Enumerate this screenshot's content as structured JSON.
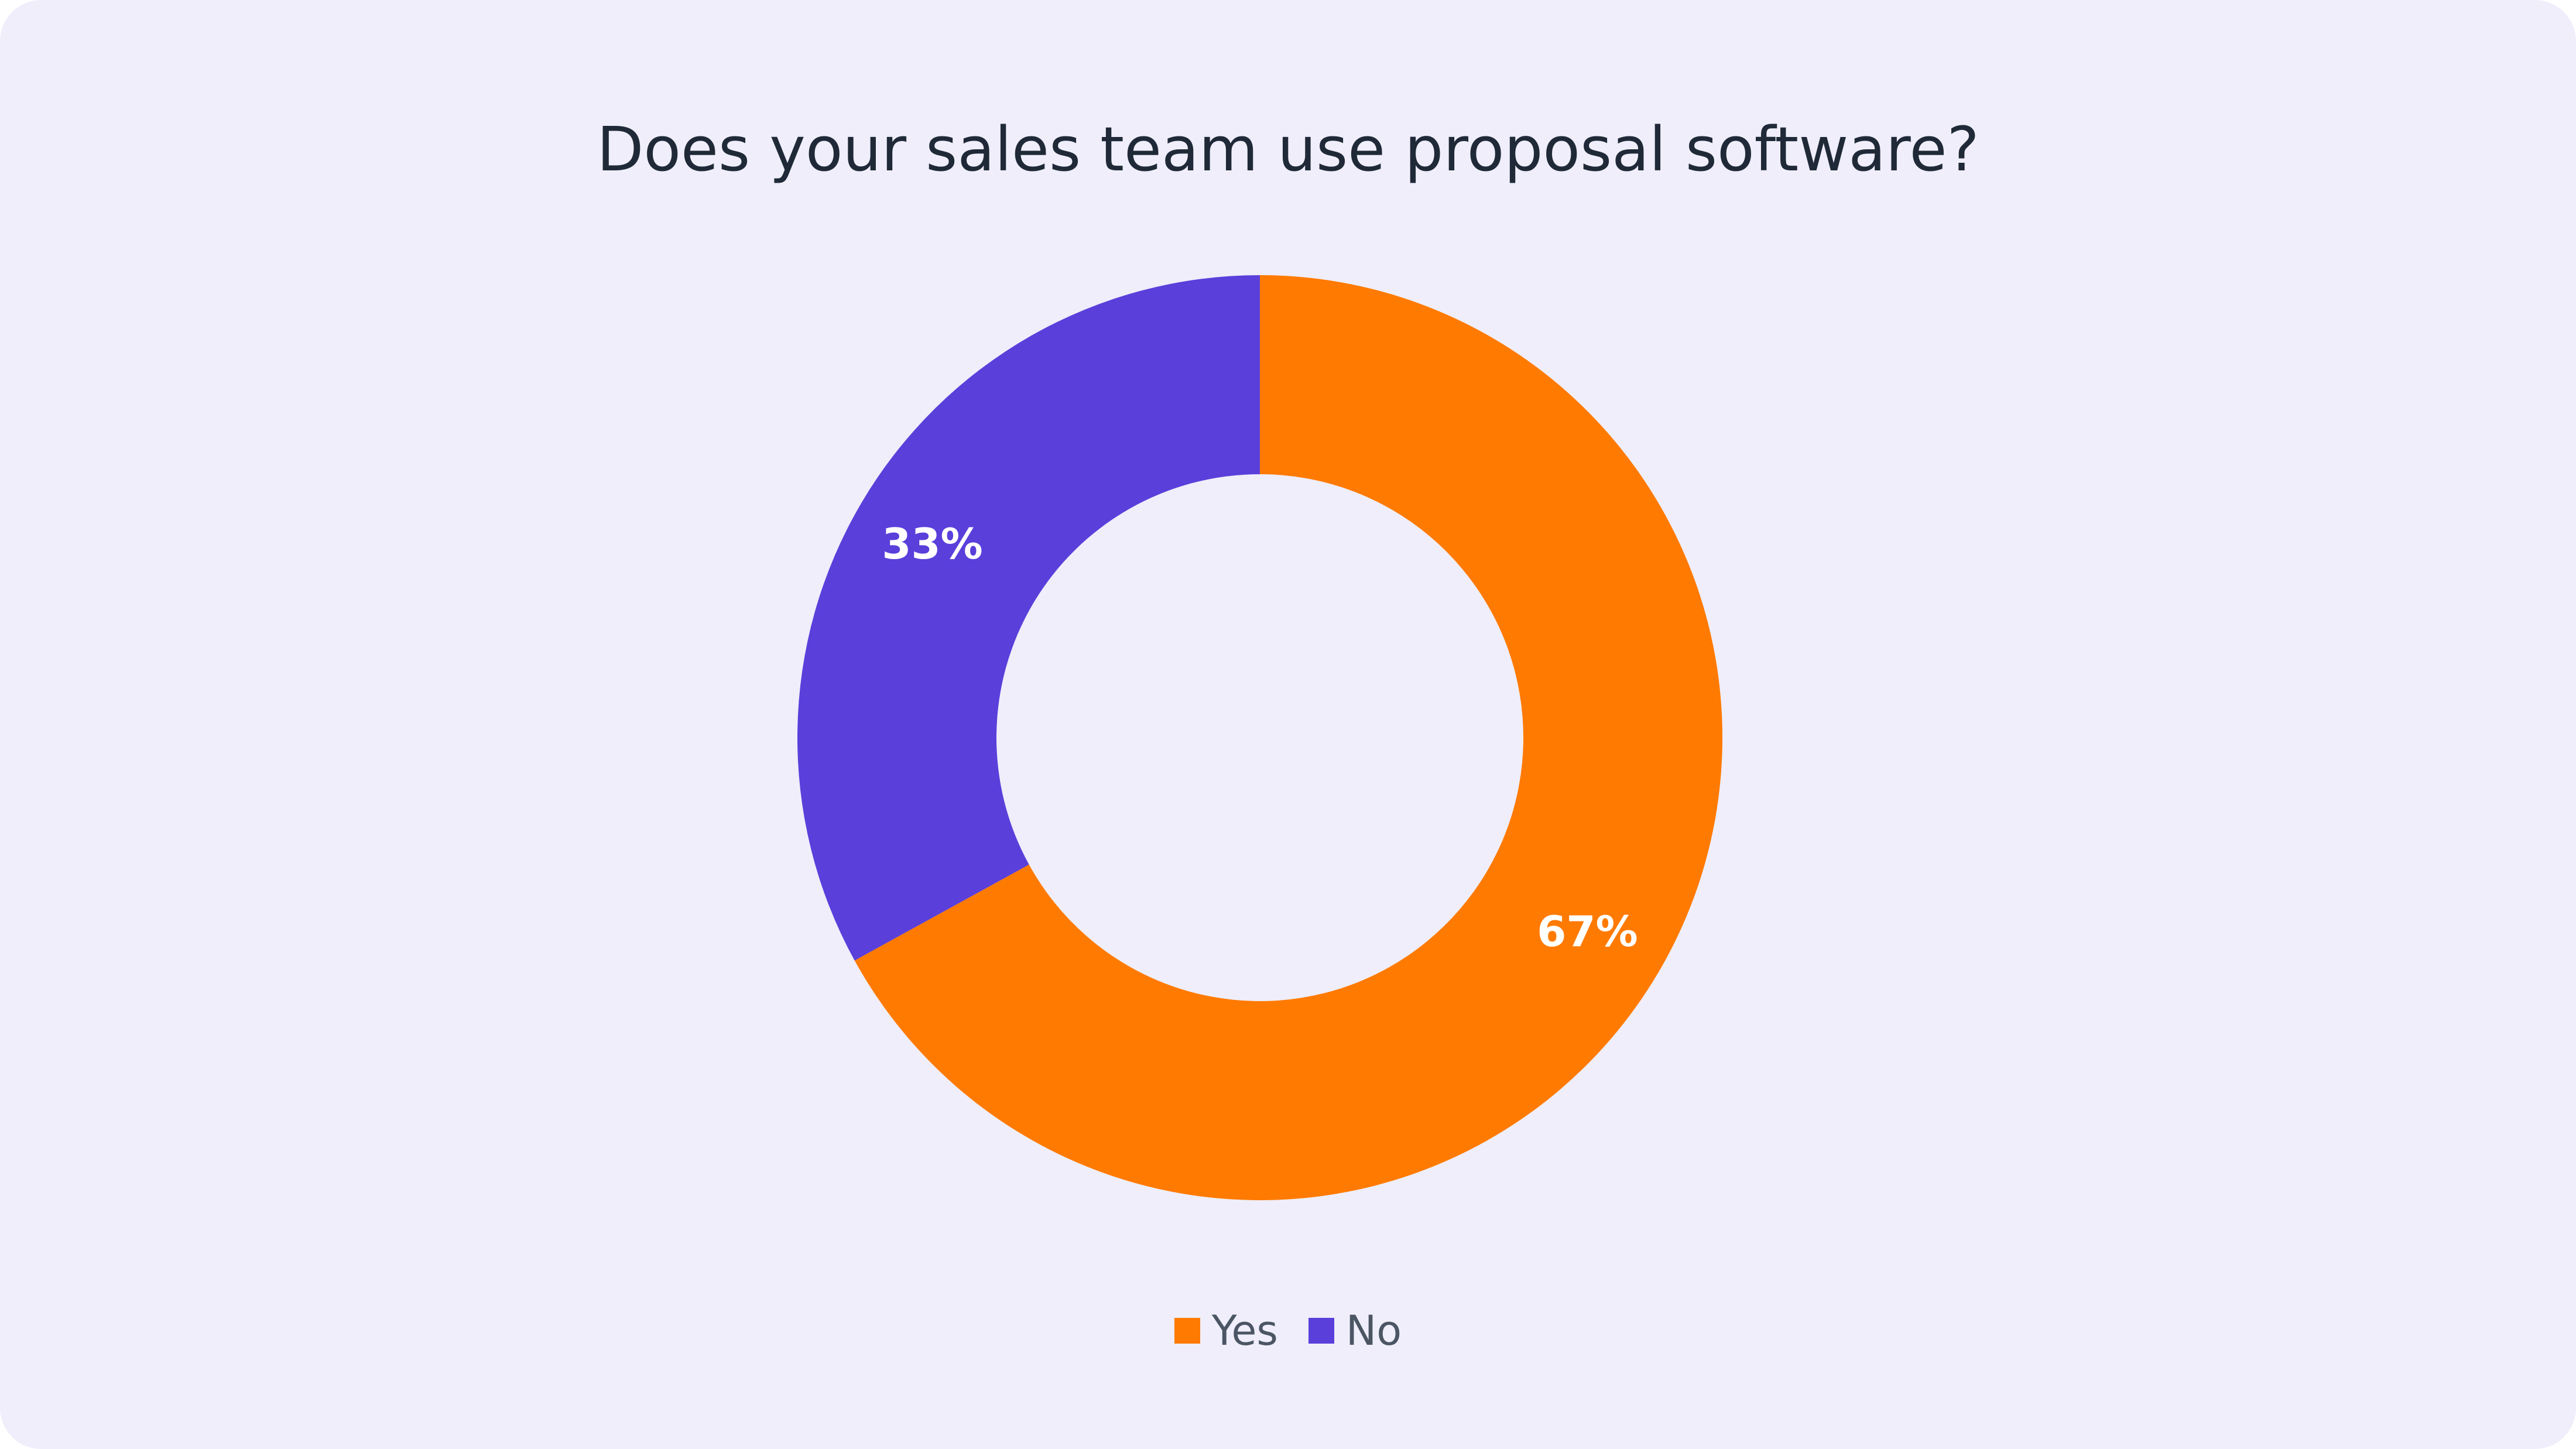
{
  "chart_data": {
    "type": "pie",
    "variant": "donut",
    "title": "Does your sales team use proposal software?",
    "slices": [
      {
        "label": "Yes",
        "value": 67,
        "display": "67%",
        "color": "#ff7a00"
      },
      {
        "label": "No",
        "value": 33,
        "display": "33%",
        "color": "#5a3fdb"
      }
    ],
    "start_angle_deg": 0,
    "direction": "clockwise",
    "legend": {
      "placement": "bottom-center",
      "items": [
        {
          "label": "Yes",
          "color": "#ff7a00"
        },
        {
          "label": "No",
          "color": "#5a3fdb"
        }
      ]
    }
  },
  "colors": {
    "background": "#efeefa",
    "title": "#1f2937",
    "legend_text": "#4b5563",
    "slice_label": "#ffffff"
  }
}
